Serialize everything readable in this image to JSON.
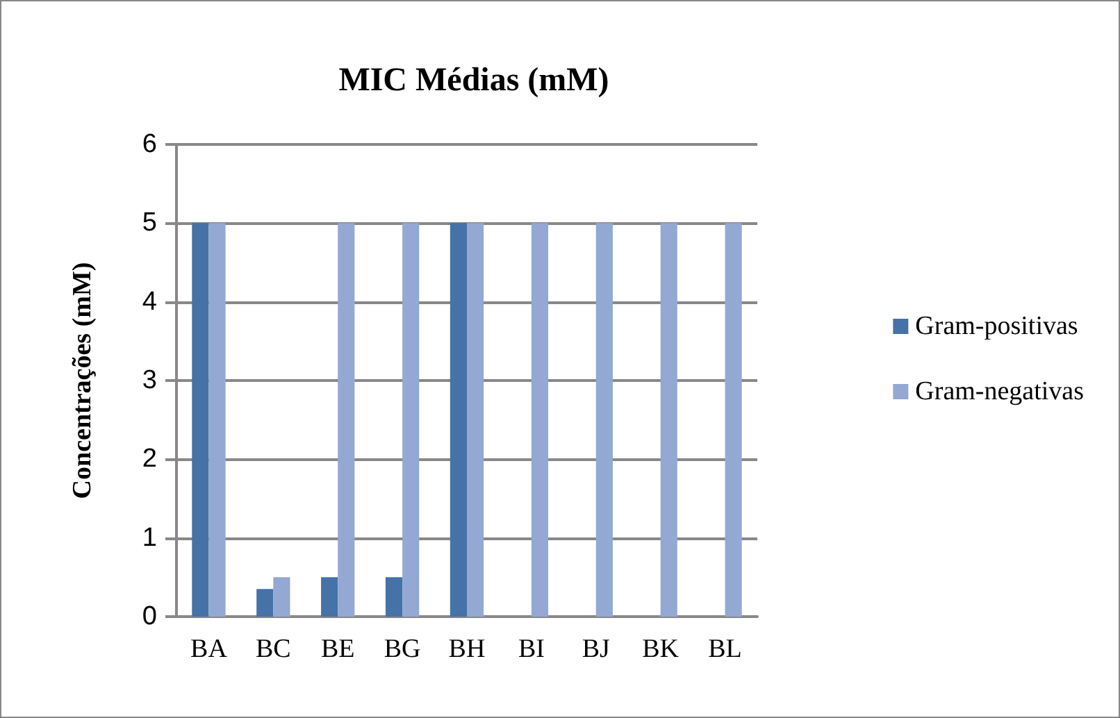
{
  "chart_data": {
    "type": "bar",
    "title": "MIC Médias (mM)",
    "ylabel": "Concentrações (mM)",
    "categories": [
      "BA",
      "BC",
      "BE",
      "BG",
      "BH",
      "BI",
      "BJ",
      "BK",
      "BL"
    ],
    "series": [
      {
        "name": "Gram-positivas",
        "color": "#4572a7",
        "values": [
          5,
          0.35,
          0.5,
          0.5,
          5,
          0,
          0,
          0,
          0
        ]
      },
      {
        "name": "Gram-negativas",
        "color": "#93a9d3",
        "values": [
          5,
          0.5,
          5,
          5,
          5,
          5,
          5,
          5,
          5
        ]
      }
    ],
    "ylim": [
      0,
      6
    ],
    "yticks": [
      0,
      1,
      2,
      3,
      4,
      5,
      6
    ],
    "grid": "y",
    "legend": "right"
  }
}
